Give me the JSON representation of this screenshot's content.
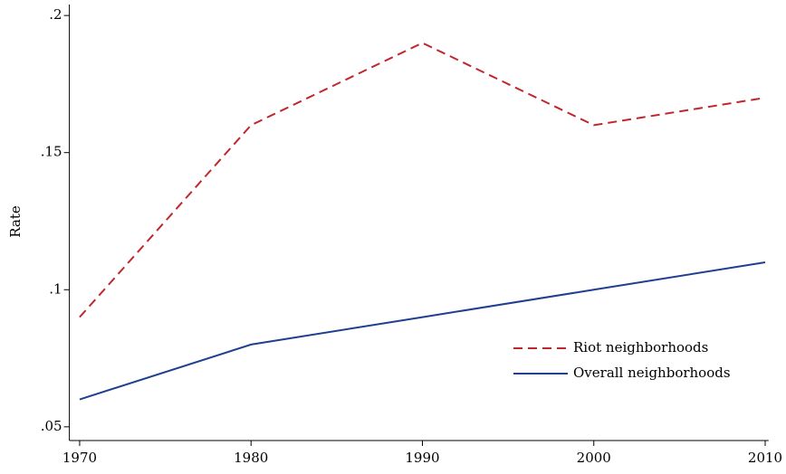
{
  "chart_data": {
    "type": "line",
    "ylabel": "Rate",
    "x": [
      1970,
      1980,
      1990,
      2000,
      2010
    ],
    "xlim": [
      1969.4,
      2010.2
    ],
    "xticks": [
      1970,
      1980,
      1990,
      2000,
      2010
    ],
    "ylim": [
      0.045,
      0.204
    ],
    "yticks": [
      {
        "value": 0.05,
        "label": ".05"
      },
      {
        "value": 0.1,
        "label": ".1"
      },
      {
        "value": 0.15,
        "label": ".15"
      },
      {
        "value": 0.2,
        "label": ".2"
      }
    ],
    "legend": "lower right",
    "series": [
      {
        "name": "Riot neighborhoods",
        "color": "#c0272d",
        "dashed": true,
        "values": [
          0.09,
          0.16,
          0.19,
          0.16,
          0.17
        ]
      },
      {
        "name": "Overall neighborhoods",
        "color": "#1f3f8f",
        "dashed": false,
        "values": [
          0.06,
          0.08,
          0.09,
          0.1,
          0.11
        ]
      }
    ]
  }
}
